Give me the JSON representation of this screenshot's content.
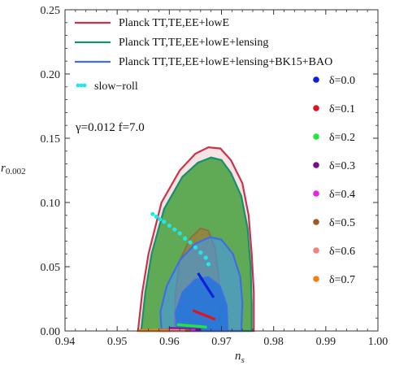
{
  "chart_data": {
    "type": "scatter",
    "xlim": [
      0.94,
      1.0
    ],
    "ylim": [
      0,
      0.25
    ],
    "xticks": [
      "0.94",
      "0.95",
      "0.96",
      "0.97",
      "0.98",
      "0.99",
      "1.00"
    ],
    "yticks": [
      "0.00",
      "0.05",
      "0.10",
      "0.15",
      "0.20",
      "0.25"
    ],
    "xlabel_main": "n",
    "xlabel_sub": "s",
    "ylabel_main": "r",
    "ylabel_sub": "0.002",
    "grid": false,
    "legend_top": [
      {
        "label": "Planck TT,TE,EE+lowE",
        "color": "#c8334a"
      },
      {
        "label": "Planck TT,TE,EE+lowE+lensing",
        "color": "#16906f"
      },
      {
        "label": "Planck TT,TE,EE+lowE+lensing+BK15+BAO",
        "color": "#3c6fe6"
      }
    ],
    "slow_roll": {
      "label": "slow−roll",
      "color": "#22e6ee",
      "x": [
        0.9568,
        0.9575,
        0.9582,
        0.959,
        0.96,
        0.961,
        0.962,
        0.963,
        0.964,
        0.965,
        0.966,
        0.967,
        0.9675
      ],
      "y": [
        0.091,
        0.089,
        0.087,
        0.085,
        0.082,
        0.079,
        0.076,
        0.072,
        0.069,
        0.065,
        0.061,
        0.057,
        0.052
      ]
    },
    "params_text": "γ=0.012  f=7.0",
    "delta_series": [
      {
        "name": "δ=0.0",
        "color": "#0a1fe0",
        "x": [
          0.9655,
          0.9685
        ],
        "y": [
          0.045,
          0.026
        ]
      },
      {
        "name": "δ=0.1",
        "color": "#e0141e",
        "x": [
          0.9645,
          0.9688
        ],
        "y": [
          0.016,
          0.009
        ]
      },
      {
        "name": "δ=0.2",
        "color": "#22e63a",
        "x": [
          0.9615,
          0.9672
        ],
        "y": [
          0.005,
          0.003
        ]
      },
      {
        "name": "δ=0.3",
        "color": "#7a0a8c",
        "x": [
          0.96,
          0.966
        ],
        "y": [
          0.002,
          0.001
        ]
      },
      {
        "name": "δ=0.4",
        "color": "#ee22e6",
        "x": [
          0.9595,
          0.965
        ],
        "y": [
          0.001,
          0.0005
        ]
      },
      {
        "name": "δ=0.5",
        "color": "#9c5a24",
        "x": [
          0.958,
          0.964
        ],
        "y": [
          0.0008,
          0.0004
        ]
      },
      {
        "name": "δ=0.6",
        "color": "#f47f7f",
        "x": [
          0.957,
          0.963
        ],
        "y": [
          0.0006,
          0.0003
        ]
      },
      {
        "name": "δ=0.7",
        "color": "#f38010",
        "x": [
          0.954,
          0.96
        ],
        "y": [
          0.0004,
          0.0002
        ]
      }
    ]
  }
}
